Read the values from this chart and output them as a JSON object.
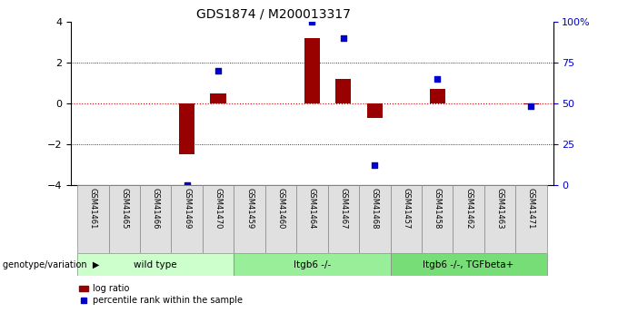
{
  "title": "GDS1874 / M200013317",
  "samples": [
    "GSM41461",
    "GSM41465",
    "GSM41466",
    "GSM41469",
    "GSM41470",
    "GSM41459",
    "GSM41460",
    "GSM41464",
    "GSM41467",
    "GSM41468",
    "GSM41457",
    "GSM41458",
    "GSM41462",
    "GSM41463",
    "GSM41471"
  ],
  "log_ratio": [
    0.0,
    0.0,
    0.0,
    -2.5,
    0.5,
    0.0,
    0.0,
    3.2,
    1.2,
    -0.7,
    0.0,
    0.7,
    0.0,
    0.0,
    -0.05
  ],
  "percentile_rank_pct": [
    null,
    null,
    null,
    0.0,
    70.0,
    null,
    null,
    100.0,
    90.0,
    12.0,
    null,
    65.0,
    null,
    null,
    48.0
  ],
  "groups": [
    {
      "label": "wild type",
      "start": 0,
      "end": 5,
      "color": "#ccffcc"
    },
    {
      "label": "Itgb6 -/-",
      "start": 5,
      "end": 10,
      "color": "#99ee99"
    },
    {
      "label": "Itgb6 -/-, TGFbeta+",
      "start": 10,
      "end": 15,
      "color": "#77dd77"
    }
  ],
  "ylim_left": [
    -4,
    4
  ],
  "ylim_right": [
    0,
    100
  ],
  "yticks_left": [
    -4,
    -2,
    0,
    2,
    4
  ],
  "yticks_right": [
    0,
    25,
    50,
    75,
    100
  ],
  "yticklabels_right": [
    "0",
    "25",
    "50",
    "75",
    "100%"
  ],
  "hlines_dotted": [
    -2,
    2
  ],
  "bar_color": "#990000",
  "dot_color": "#0000cc",
  "zero_line_color": "#cc0000",
  "legend_label_bar": "log ratio",
  "legend_label_dot": "percentile rank within the sample",
  "xlabel_group": "genotype/variation",
  "bg_color": "#ffffff",
  "bar_width": 0.5
}
